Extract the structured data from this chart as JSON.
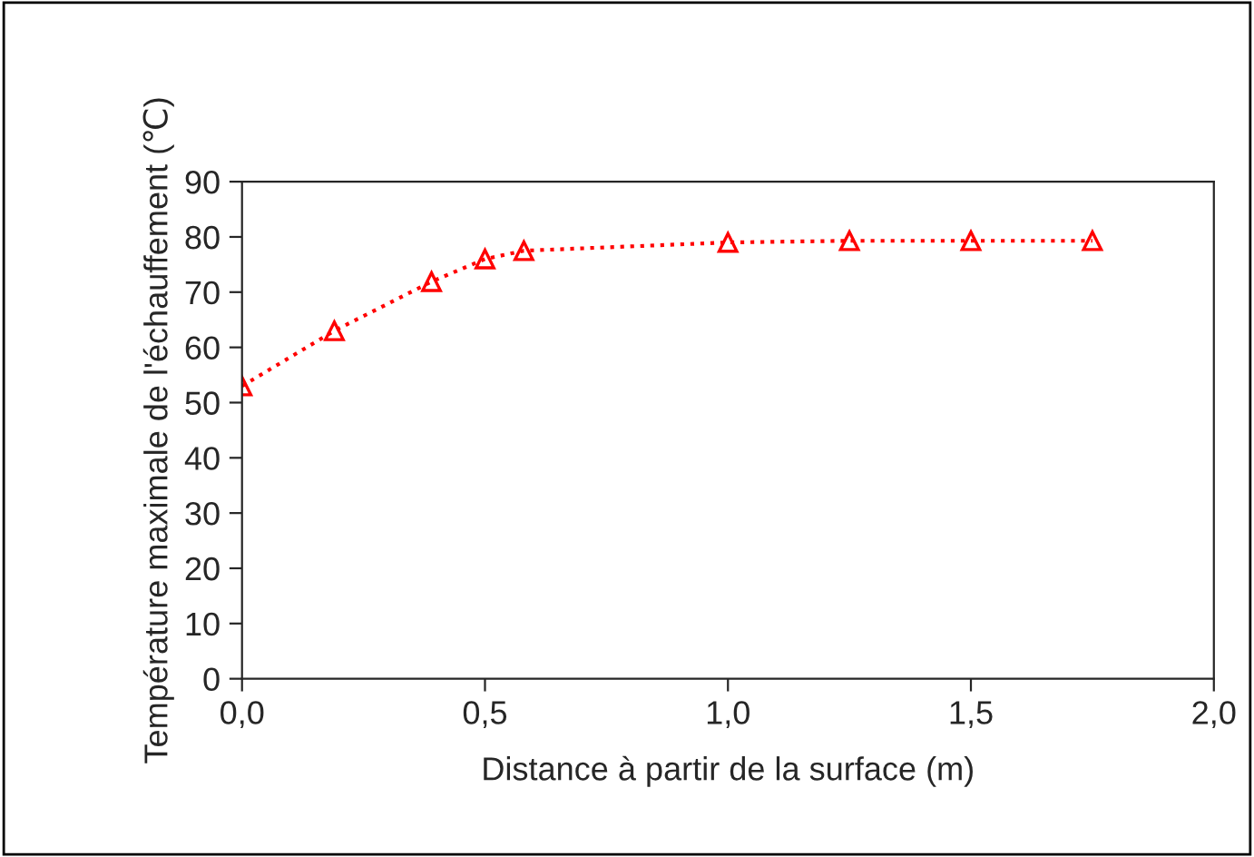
{
  "chart_data": {
    "type": "line",
    "xlabel": "Distance à partir de la surface (m)",
    "ylabel": "Température maximale de l'échauffement (℃)",
    "x": [
      0,
      0.19,
      0.39,
      0.5,
      0.58,
      1.0,
      1.25,
      1.5,
      1.75
    ],
    "series": [
      {
        "color": "#ff0000",
        "values": [
          53.0,
          63.0,
          71.9,
          76.0,
          77.5,
          79.0,
          79.3,
          79.3,
          79.3
        ]
      }
    ],
    "xlim": [
      0,
      2
    ],
    "xticks": [
      {
        "value": 0,
        "label": "0,0"
      },
      {
        "value": 0.5,
        "label": "0,5"
      },
      {
        "value": 1,
        "label": "1,0"
      },
      {
        "value": 1.5,
        "label": "1,5"
      },
      {
        "value": 2,
        "label": "2,0"
      }
    ],
    "ylim": [
      0,
      90
    ],
    "yticks": [
      0,
      10,
      20,
      30,
      40,
      50,
      60,
      70,
      80,
      90
    ],
    "grid": false,
    "legend": false,
    "marker": "triangle",
    "line_style": "dotted"
  }
}
